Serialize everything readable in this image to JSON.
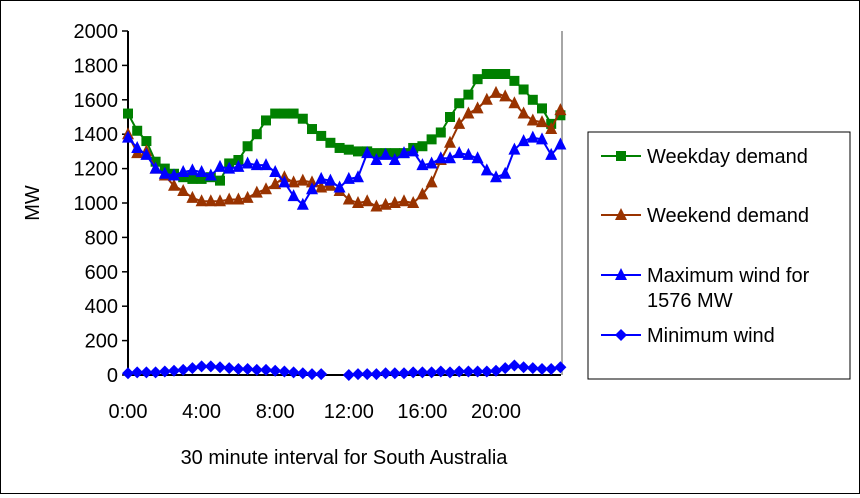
{
  "chart_data": {
    "type": "line",
    "title": "",
    "xlabel": "30 minute interval for South Australia",
    "ylabel": "MW",
    "ylim": [
      0,
      2000
    ],
    "yticks": [
      "0",
      "200",
      "400",
      "600",
      "800",
      "1000",
      "1200",
      "1400",
      "1600",
      "1800",
      "2000"
    ],
    "xticks": [
      "0:00",
      "4:00",
      "8:00",
      "12:00",
      "16:00",
      "20:00"
    ],
    "legend_position": "right",
    "series": [
      {
        "name": "Weekday demand",
        "color": "#008000",
        "marker": "square",
        "values": [
          1520,
          1420,
          1360,
          1240,
          1200,
          1170,
          1150,
          1140,
          1140,
          1150,
          1130,
          1230,
          1250,
          1330,
          1400,
          1480,
          1520,
          1520,
          1520,
          1490,
          1430,
          1390,
          1350,
          1320,
          1310,
          1300,
          1300,
          1290,
          1290,
          1290,
          1290,
          1320,
          1330,
          1370,
          1410,
          1500,
          1580,
          1630,
          1720,
          1750,
          1750,
          1750,
          1710,
          1660,
          1600,
          1550,
          1460,
          1510
        ]
      },
      {
        "name": "Weekend demand",
        "color": "#993300",
        "marker": "triangle",
        "values": [
          1400,
          1290,
          1300,
          1200,
          1160,
          1100,
          1070,
          1030,
          1010,
          1010,
          1010,
          1020,
          1020,
          1030,
          1060,
          1080,
          1110,
          1150,
          1120,
          1130,
          1120,
          1090,
          1100,
          1070,
          1020,
          1000,
          1010,
          980,
          990,
          1000,
          1010,
          1000,
          1050,
          1120,
          1250,
          1350,
          1460,
          1520,
          1550,
          1600,
          1640,
          1620,
          1580,
          1520,
          1480,
          1470,
          1430,
          1540
        ]
      },
      {
        "name": "Maximum wind for 1576 MW",
        "color": "#0000FF",
        "marker": "triangle",
        "values": [
          1380,
          1320,
          1280,
          1200,
          1170,
          1160,
          1180,
          1190,
          1180,
          1160,
          1210,
          1200,
          1210,
          1230,
          1220,
          1220,
          1180,
          1120,
          1040,
          990,
          1080,
          1140,
          1130,
          1090,
          1140,
          1150,
          1290,
          1250,
          1280,
          1250,
          1290,
          1300,
          1220,
          1230,
          1260,
          1260,
          1290,
          1280,
          1260,
          1190,
          1150,
          1170,
          1310,
          1360,
          1380,
          1370,
          1280,
          1340
        ]
      },
      {
        "name": "Minimum wind",
        "color": "#0000FF",
        "marker": "diamond",
        "values": [
          10,
          15,
          15,
          15,
          20,
          25,
          30,
          40,
          50,
          50,
          45,
          40,
          35,
          35,
          30,
          30,
          25,
          20,
          15,
          10,
          5,
          5,
          null,
          null,
          0,
          5,
          5,
          5,
          10,
          10,
          10,
          15,
          15,
          15,
          20,
          15,
          20,
          20,
          20,
          20,
          25,
          40,
          55,
          45,
          40,
          35,
          35,
          45
        ]
      }
    ]
  }
}
